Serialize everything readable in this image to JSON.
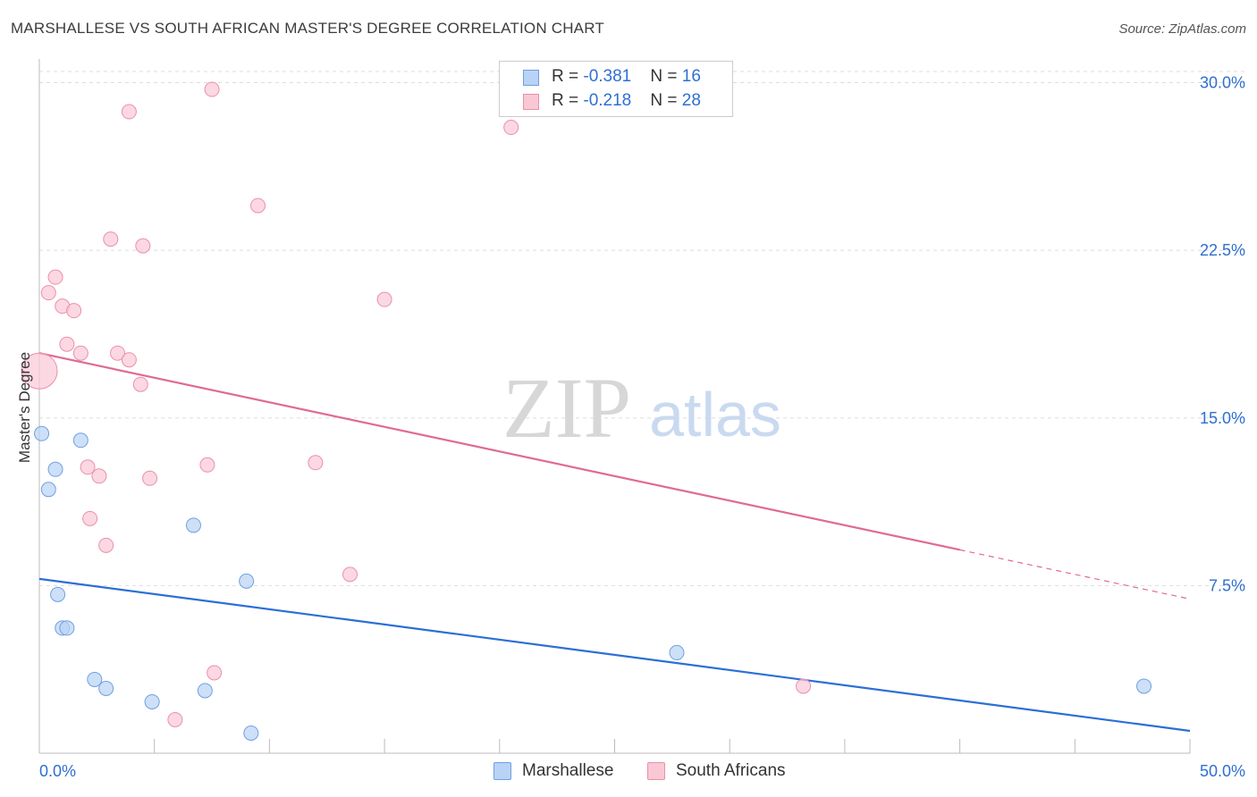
{
  "header": {
    "title": "MARSHALLESE VS SOUTH AFRICAN MASTER'S DEGREE CORRELATION CHART",
    "source": "Source: ZipAtlas.com"
  },
  "legend": {
    "rows": [
      {
        "r_label": "R = ",
        "r_value": "-0.381",
        "n_label": "N = ",
        "n_value": "16"
      },
      {
        "r_label": "R = ",
        "r_value": "-0.218",
        "n_label": "N = ",
        "n_value": "28"
      }
    ]
  },
  "watermark": {
    "zip": "ZIP",
    "atlas": "atlas"
  },
  "colors": {
    "marshallese_fill": "#b8d3f5",
    "marshallese_stroke": "#6f9fe0",
    "marshallese_line": "#2b6fd6",
    "south_african_fill": "#f9c8d5",
    "south_african_stroke": "#ec8fab",
    "south_african_line": "#e06a93",
    "tick_label": "#2e6fd1",
    "grid": "#dddddd"
  },
  "chart_data": {
    "type": "scatter",
    "title": "MARSHALLESE VS SOUTH AFRICAN MASTER'S DEGREE CORRELATION CHART",
    "xlabel": "",
    "ylabel": "Master's Degree",
    "xlim": [
      0,
      50
    ],
    "ylim": [
      0,
      30.5
    ],
    "x_tick_labels": [
      "0.0%",
      "50.0%"
    ],
    "y_ticks": [
      7.5,
      15.0,
      22.5,
      30.0
    ],
    "y_tick_labels": [
      "7.5%",
      "15.0%",
      "22.5%",
      "30.0%"
    ],
    "grid": "horizontal dashed",
    "legend_position": "top-center",
    "series": [
      {
        "name": "Marshallese",
        "points": [
          [
            0.1,
            14.3
          ],
          [
            0.4,
            11.8
          ],
          [
            0.7,
            12.7
          ],
          [
            0.8,
            7.1
          ],
          [
            1.0,
            5.6
          ],
          [
            1.2,
            5.6
          ],
          [
            1.8,
            14.0
          ],
          [
            2.4,
            3.3
          ],
          [
            2.9,
            2.9
          ],
          [
            4.9,
            2.3
          ],
          [
            6.7,
            10.2
          ],
          [
            7.2,
            2.8
          ],
          [
            9.0,
            7.7
          ],
          [
            9.2,
            0.9
          ],
          [
            27.7,
            4.5
          ],
          [
            48.0,
            3.0
          ]
        ],
        "trend": {
          "x": [
            0,
            50
          ],
          "y": [
            7.8,
            1.0
          ]
        }
      },
      {
        "name": "South Africans",
        "points": [
          [
            0.0,
            17.1
          ],
          [
            0.4,
            20.6
          ],
          [
            0.7,
            21.3
          ],
          [
            1.0,
            20.0
          ],
          [
            1.2,
            18.3
          ],
          [
            1.5,
            19.8
          ],
          [
            1.8,
            17.9
          ],
          [
            2.1,
            12.8
          ],
          [
            2.2,
            10.5
          ],
          [
            2.6,
            12.4
          ],
          [
            2.9,
            9.3
          ],
          [
            3.1,
            23.0
          ],
          [
            3.4,
            17.9
          ],
          [
            3.9,
            28.7
          ],
          [
            3.9,
            17.6
          ],
          [
            4.4,
            16.5
          ],
          [
            4.5,
            22.7
          ],
          [
            4.8,
            12.3
          ],
          [
            5.9,
            1.5
          ],
          [
            7.3,
            12.9
          ],
          [
            7.6,
            3.6
          ],
          [
            7.5,
            29.7
          ],
          [
            9.5,
            24.5
          ],
          [
            12.0,
            13.0
          ],
          [
            13.5,
            8.0
          ],
          [
            15.0,
            20.3
          ],
          [
            20.5,
            28.0
          ],
          [
            33.2,
            3.0
          ]
        ],
        "trend": {
          "x": [
            0,
            40
          ],
          "y": [
            17.9,
            9.1
          ]
        },
        "trend_dashed": {
          "x": [
            40,
            50
          ],
          "y": [
            9.1,
            6.9
          ]
        }
      }
    ]
  },
  "bottom_legend": {
    "items": [
      {
        "label": "Marshallese"
      },
      {
        "label": "South Africans"
      }
    ]
  }
}
